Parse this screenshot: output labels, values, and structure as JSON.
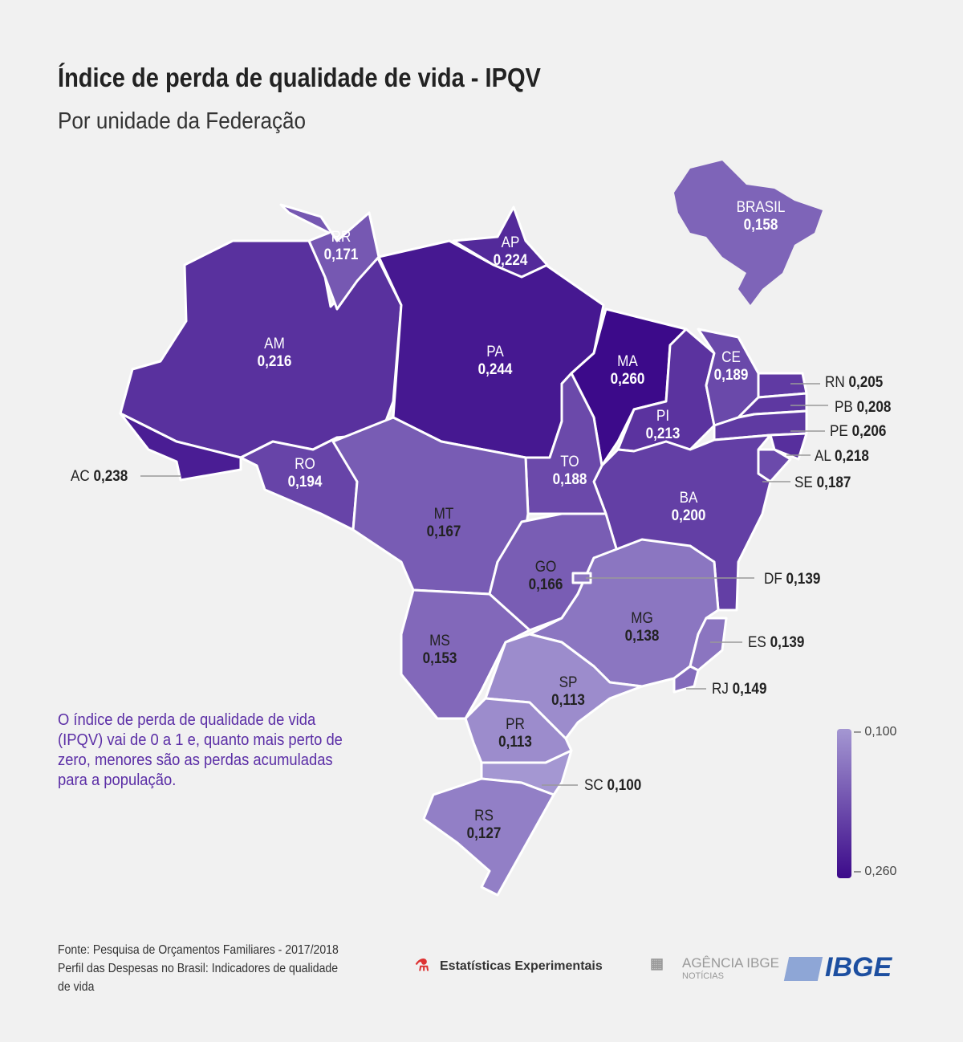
{
  "title": "Índice de perda de qualidade de vida - IPQV",
  "subtitle": "Por unidade da Federação",
  "colors": {
    "low": "#a497d2",
    "high": "#3c0a8a",
    "border": "#ffffff"
  },
  "states": {
    "AM": {
      "label": "AM",
      "value": "0,216",
      "v": 0.216
    },
    "AC": {
      "label": "AC",
      "value": "0,238",
      "v": 0.238
    },
    "RR": {
      "label": "RR",
      "value": "0,171",
      "v": 0.171
    },
    "AP": {
      "label": "AP",
      "value": "0,224",
      "v": 0.224
    },
    "PA": {
      "label": "PA",
      "value": "0,244",
      "v": 0.244
    },
    "MA": {
      "label": "MA",
      "value": "0,260",
      "v": 0.26
    },
    "PI": {
      "label": "PI",
      "value": "0,213",
      "v": 0.213
    },
    "CE": {
      "label": "CE",
      "value": "0,189",
      "v": 0.189
    },
    "RN": {
      "label": "RN",
      "value": "0,205",
      "v": 0.205
    },
    "PB": {
      "label": "PB",
      "value": "0,208",
      "v": 0.208
    },
    "PE": {
      "label": "PE",
      "value": "0,206",
      "v": 0.206
    },
    "AL": {
      "label": "AL",
      "value": "0,218",
      "v": 0.218
    },
    "SE": {
      "label": "SE",
      "value": "0,187",
      "v": 0.187
    },
    "BA": {
      "label": "BA",
      "value": "0,200",
      "v": 0.2
    },
    "TO": {
      "label": "TO",
      "value": "0,188",
      "v": 0.188
    },
    "RO": {
      "label": "RO",
      "value": "0,194",
      "v": 0.194
    },
    "MT": {
      "label": "MT",
      "value": "0,167",
      "v": 0.167
    },
    "GO": {
      "label": "GO",
      "value": "0,166",
      "v": 0.166
    },
    "DF": {
      "label": "DF",
      "value": "0,139",
      "v": 0.139
    },
    "MS": {
      "label": "MS",
      "value": "0,153",
      "v": 0.153
    },
    "MG": {
      "label": "MG",
      "value": "0,138",
      "v": 0.138
    },
    "ES": {
      "label": "ES",
      "value": "0,139",
      "v": 0.139
    },
    "RJ": {
      "label": "RJ",
      "value": "0,149",
      "v": 0.149
    },
    "SP": {
      "label": "SP",
      "value": "0,113",
      "v": 0.113
    },
    "PR": {
      "label": "PR",
      "value": "0,113",
      "v": 0.113
    },
    "SC": {
      "label": "SC",
      "value": "0,100",
      "v": 0.1
    },
    "RS": {
      "label": "RS",
      "value": "0,127",
      "v": 0.127
    },
    "BRASIL": {
      "label": "BRASIL",
      "value": "0,158",
      "v": 0.158
    }
  },
  "note": "O índice de perda de qualidade de vida (IPQV) vai de 0 a 1 e, quanto mais perto de zero, menores são as perdas acumuladas para a população.",
  "legend": {
    "min": "0,100",
    "max": "0,260",
    "min_v": 0.1,
    "max_v": 0.26
  },
  "footer": {
    "source": "Fonte: Pesquisa de Orçamentos Familiares - 2017/2018",
    "line2": "Perfil das Despesas no Brasil: Indicadores de qualidade de vida"
  },
  "logos": {
    "experimentais": "Estatísticas Experimentais",
    "agencia": "AGÊNCIA IBGE",
    "agencia_sub": "NOTÍCIAS",
    "ibge": "IBGE"
  }
}
